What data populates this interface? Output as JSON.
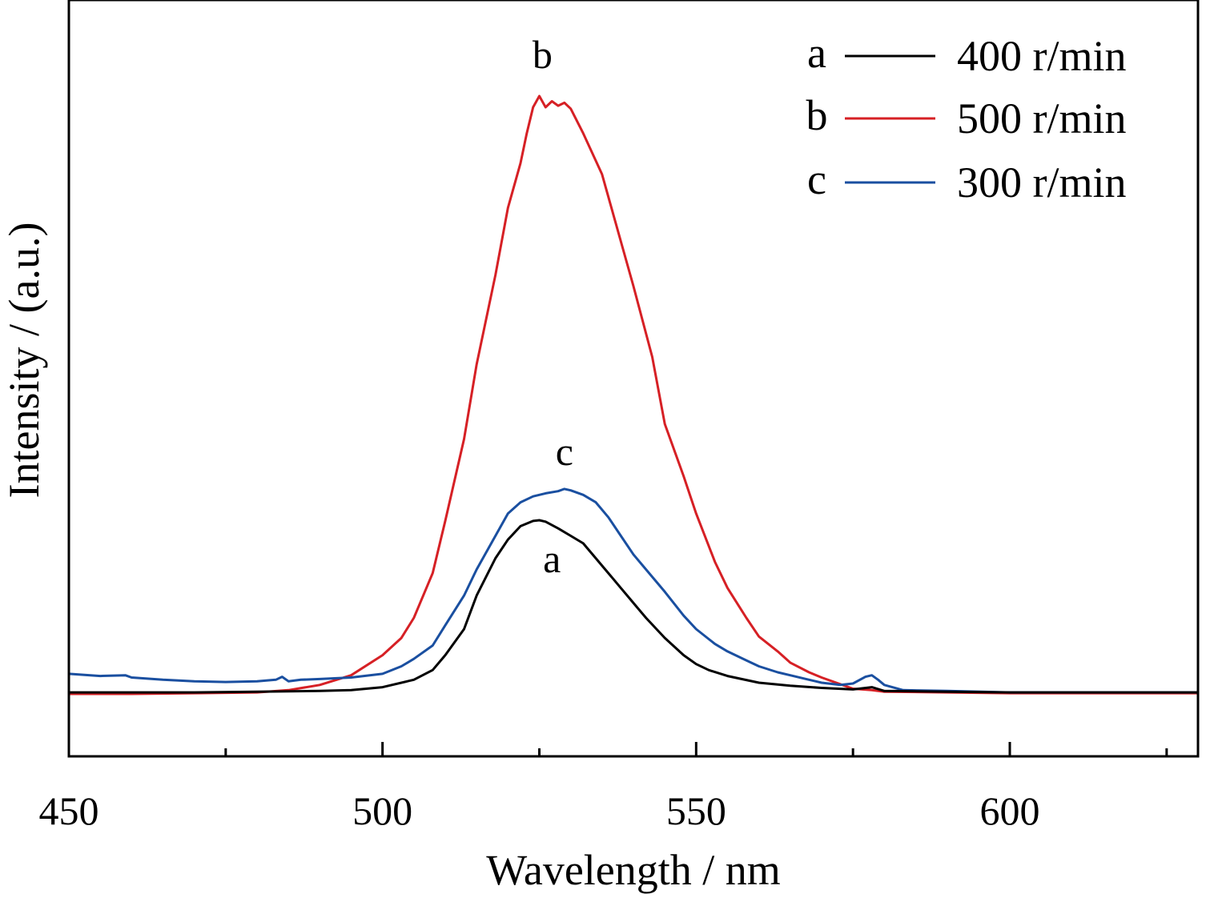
{
  "chart_data": {
    "type": "line",
    "title": "",
    "xlabel": "Wavelength / nm",
    "ylabel": "Intensity / (a.u.)",
    "xlim": [
      450,
      630
    ],
    "ylim": [
      0,
      1
    ],
    "x_ticks": [
      450,
      500,
      550,
      600
    ],
    "x_tick_labels": [
      "450",
      "500",
      "550",
      "600"
    ],
    "x_minor_ticks": [
      475,
      525,
      575,
      625
    ],
    "y_ticks_shown": false,
    "grid": false,
    "legend_position": "top-right",
    "series": [
      {
        "id": "a",
        "name": "400 r/min",
        "color": "#000000",
        "curve_label": "a",
        "points": [
          [
            450,
            0.095
          ],
          [
            460,
            0.095
          ],
          [
            470,
            0.095
          ],
          [
            480,
            0.096
          ],
          [
            490,
            0.097
          ],
          [
            495,
            0.098
          ],
          [
            500,
            0.102
          ],
          [
            505,
            0.112
          ],
          [
            508,
            0.125
          ],
          [
            510,
            0.145
          ],
          [
            513,
            0.18
          ],
          [
            515,
            0.225
          ],
          [
            518,
            0.275
          ],
          [
            520,
            0.3
          ],
          [
            522,
            0.318
          ],
          [
            524,
            0.325
          ],
          [
            525,
            0.326
          ],
          [
            526,
            0.324
          ],
          [
            528,
            0.315
          ],
          [
            530,
            0.305
          ],
          [
            532,
            0.295
          ],
          [
            534,
            0.275
          ],
          [
            536,
            0.255
          ],
          [
            538,
            0.235
          ],
          [
            540,
            0.215
          ],
          [
            542,
            0.195
          ],
          [
            545,
            0.168
          ],
          [
            548,
            0.145
          ],
          [
            550,
            0.133
          ],
          [
            552,
            0.125
          ],
          [
            555,
            0.117
          ],
          [
            560,
            0.108
          ],
          [
            565,
            0.104
          ],
          [
            570,
            0.101
          ],
          [
            575,
            0.099
          ],
          [
            578,
            0.102
          ],
          [
            580,
            0.097
          ],
          [
            590,
            0.096
          ],
          [
            600,
            0.095
          ],
          [
            610,
            0.095
          ],
          [
            620,
            0.095
          ],
          [
            630,
            0.095
          ]
        ]
      },
      {
        "id": "b",
        "name": "500 r/min",
        "color": "#d62025",
        "curve_label": "b",
        "points": [
          [
            450,
            0.093
          ],
          [
            460,
            0.093
          ],
          [
            470,
            0.094
          ],
          [
            480,
            0.095
          ],
          [
            485,
            0.098
          ],
          [
            490,
            0.105
          ],
          [
            495,
            0.118
          ],
          [
            500,
            0.145
          ],
          [
            503,
            0.168
          ],
          [
            505,
            0.195
          ],
          [
            508,
            0.255
          ],
          [
            510,
            0.325
          ],
          [
            513,
            0.435
          ],
          [
            515,
            0.535
          ],
          [
            518,
            0.655
          ],
          [
            520,
            0.745
          ],
          [
            522,
            0.805
          ],
          [
            523,
            0.845
          ],
          [
            524,
            0.88
          ],
          [
            525,
            0.895
          ],
          [
            526,
            0.88
          ],
          [
            527,
            0.888
          ],
          [
            528,
            0.882
          ],
          [
            529,
            0.886
          ],
          [
            530,
            0.878
          ],
          [
            532,
            0.845
          ],
          [
            535,
            0.79
          ],
          [
            538,
            0.7
          ],
          [
            540,
            0.64
          ],
          [
            543,
            0.545
          ],
          [
            545,
            0.455
          ],
          [
            548,
            0.385
          ],
          [
            550,
            0.335
          ],
          [
            553,
            0.27
          ],
          [
            555,
            0.235
          ],
          [
            558,
            0.195
          ],
          [
            560,
            0.17
          ],
          [
            563,
            0.15
          ],
          [
            565,
            0.135
          ],
          [
            568,
            0.122
          ],
          [
            570,
            0.115
          ],
          [
            573,
            0.106
          ],
          [
            575,
            0.1
          ],
          [
            578,
            0.098
          ],
          [
            580,
            0.096
          ],
          [
            590,
            0.095
          ],
          [
            600,
            0.094
          ],
          [
            610,
            0.094
          ],
          [
            620,
            0.094
          ],
          [
            630,
            0.094
          ]
        ]
      },
      {
        "id": "c",
        "name": "300 r/min",
        "color": "#1a4fa0",
        "curve_label": "c",
        "points": [
          [
            450,
            0.12
          ],
          [
            455,
            0.117
          ],
          [
            459,
            0.118
          ],
          [
            460,
            0.115
          ],
          [
            465,
            0.112
          ],
          [
            470,
            0.11
          ],
          [
            475,
            0.109
          ],
          [
            480,
            0.11
          ],
          [
            483,
            0.112
          ],
          [
            484,
            0.116
          ],
          [
            485,
            0.11
          ],
          [
            487,
            0.112
          ],
          [
            490,
            0.113
          ],
          [
            495,
            0.115
          ],
          [
            500,
            0.12
          ],
          [
            503,
            0.13
          ],
          [
            505,
            0.14
          ],
          [
            508,
            0.158
          ],
          [
            510,
            0.185
          ],
          [
            513,
            0.225
          ],
          [
            515,
            0.26
          ],
          [
            518,
            0.305
          ],
          [
            520,
            0.335
          ],
          [
            522,
            0.35
          ],
          [
            524,
            0.358
          ],
          [
            526,
            0.362
          ],
          [
            528,
            0.365
          ],
          [
            529,
            0.368
          ],
          [
            530,
            0.366
          ],
          [
            532,
            0.36
          ],
          [
            534,
            0.35
          ],
          [
            536,
            0.33
          ],
          [
            538,
            0.305
          ],
          [
            540,
            0.28
          ],
          [
            542,
            0.26
          ],
          [
            545,
            0.23
          ],
          [
            548,
            0.198
          ],
          [
            550,
            0.18
          ],
          [
            553,
            0.16
          ],
          [
            555,
            0.15
          ],
          [
            558,
            0.138
          ],
          [
            560,
            0.13
          ],
          [
            563,
            0.122
          ],
          [
            565,
            0.118
          ],
          [
            568,
            0.112
          ],
          [
            570,
            0.108
          ],
          [
            573,
            0.105
          ],
          [
            575,
            0.107
          ],
          [
            577,
            0.116
          ],
          [
            578,
            0.118
          ],
          [
            579,
            0.112
          ],
          [
            580,
            0.105
          ],
          [
            583,
            0.098
          ],
          [
            590,
            0.097
          ],
          [
            600,
            0.095
          ],
          [
            610,
            0.095
          ],
          [
            620,
            0.095
          ],
          [
            630,
            0.095
          ]
        ]
      }
    ]
  }
}
